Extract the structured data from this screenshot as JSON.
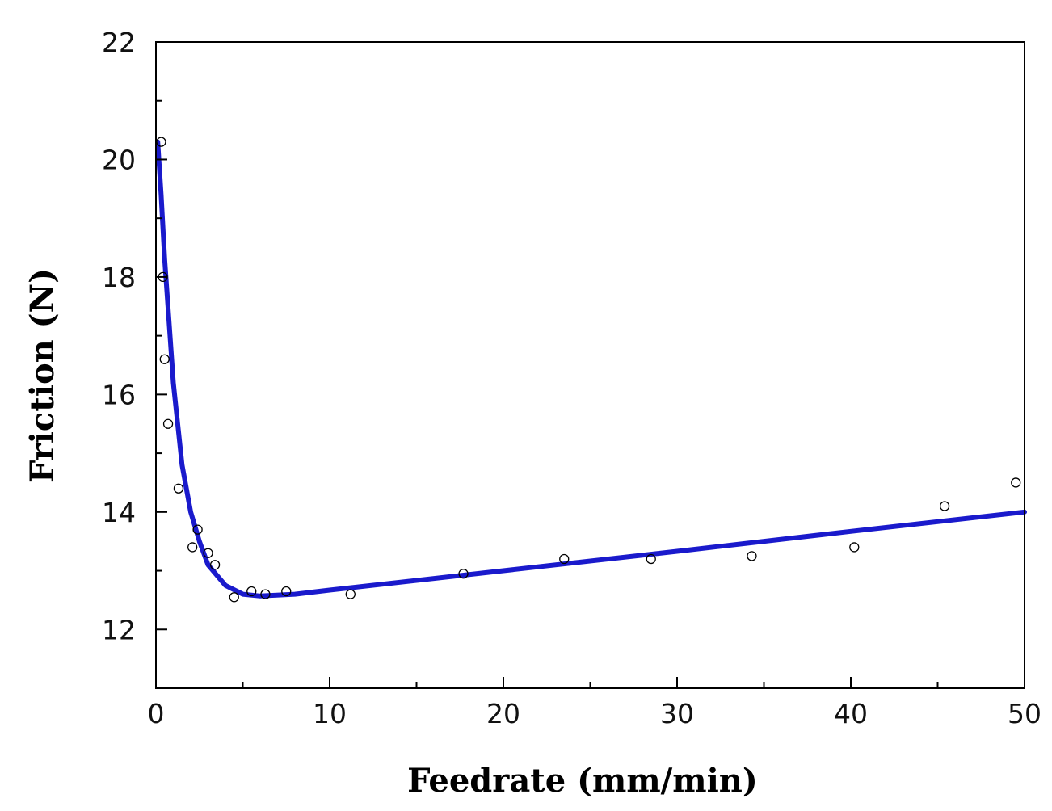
{
  "chart_data": {
    "type": "scatter",
    "title": "",
    "xlabel": "Feedrate  (mm/min)",
    "ylabel": "Friction (N)",
    "xlim": [
      0,
      50
    ],
    "ylim": [
      11,
      22
    ],
    "xticks": [
      0,
      10,
      20,
      30,
      40,
      50
    ],
    "xtick_labels": [
      "0",
      "10",
      "20",
      "30",
      "40",
      "50"
    ],
    "xminor": [
      5,
      15,
      25,
      35,
      45
    ],
    "yticks": [
      12,
      14,
      16,
      18,
      20,
      22
    ],
    "ytick_labels": [
      "12",
      "14",
      "16",
      "18",
      "20",
      "22"
    ],
    "yminor": [
      13,
      15,
      17,
      19,
      21
    ],
    "grid": false,
    "legend": "none",
    "series": [
      {
        "kind": "markers",
        "marker": "open-circle",
        "color": "#000000",
        "points": [
          [
            0.3,
            20.3
          ],
          [
            0.4,
            18.0
          ],
          [
            0.5,
            16.6
          ],
          [
            0.7,
            15.5
          ],
          [
            1.3,
            14.4
          ],
          [
            2.1,
            13.4
          ],
          [
            2.4,
            13.7
          ],
          [
            3.0,
            13.3
          ],
          [
            3.4,
            13.1
          ],
          [
            4.5,
            12.55
          ],
          [
            5.5,
            12.65
          ],
          [
            6.3,
            12.6
          ],
          [
            7.5,
            12.65
          ],
          [
            11.2,
            12.6
          ],
          [
            17.7,
            12.95
          ],
          [
            23.5,
            13.2
          ],
          [
            28.5,
            13.2
          ],
          [
            34.3,
            13.25
          ],
          [
            40.2,
            13.4
          ],
          [
            45.4,
            14.1
          ],
          [
            49.5,
            14.5
          ]
        ]
      },
      {
        "kind": "fitted-curve",
        "color": "#1a1acc",
        "points": [
          [
            0.1,
            20.3
          ],
          [
            0.3,
            19.4
          ],
          [
            0.5,
            18.3
          ],
          [
            1.0,
            16.2
          ],
          [
            1.5,
            14.8
          ],
          [
            2.0,
            14.0
          ],
          [
            2.5,
            13.5
          ],
          [
            3.0,
            13.1
          ],
          [
            4.0,
            12.75
          ],
          [
            5.0,
            12.6
          ],
          [
            6.0,
            12.57
          ],
          [
            8.0,
            12.6
          ],
          [
            10.0,
            12.67
          ],
          [
            20.0,
            13.0
          ],
          [
            30.0,
            13.33
          ],
          [
            40.0,
            13.67
          ],
          [
            50.0,
            14.0
          ]
        ]
      }
    ]
  }
}
